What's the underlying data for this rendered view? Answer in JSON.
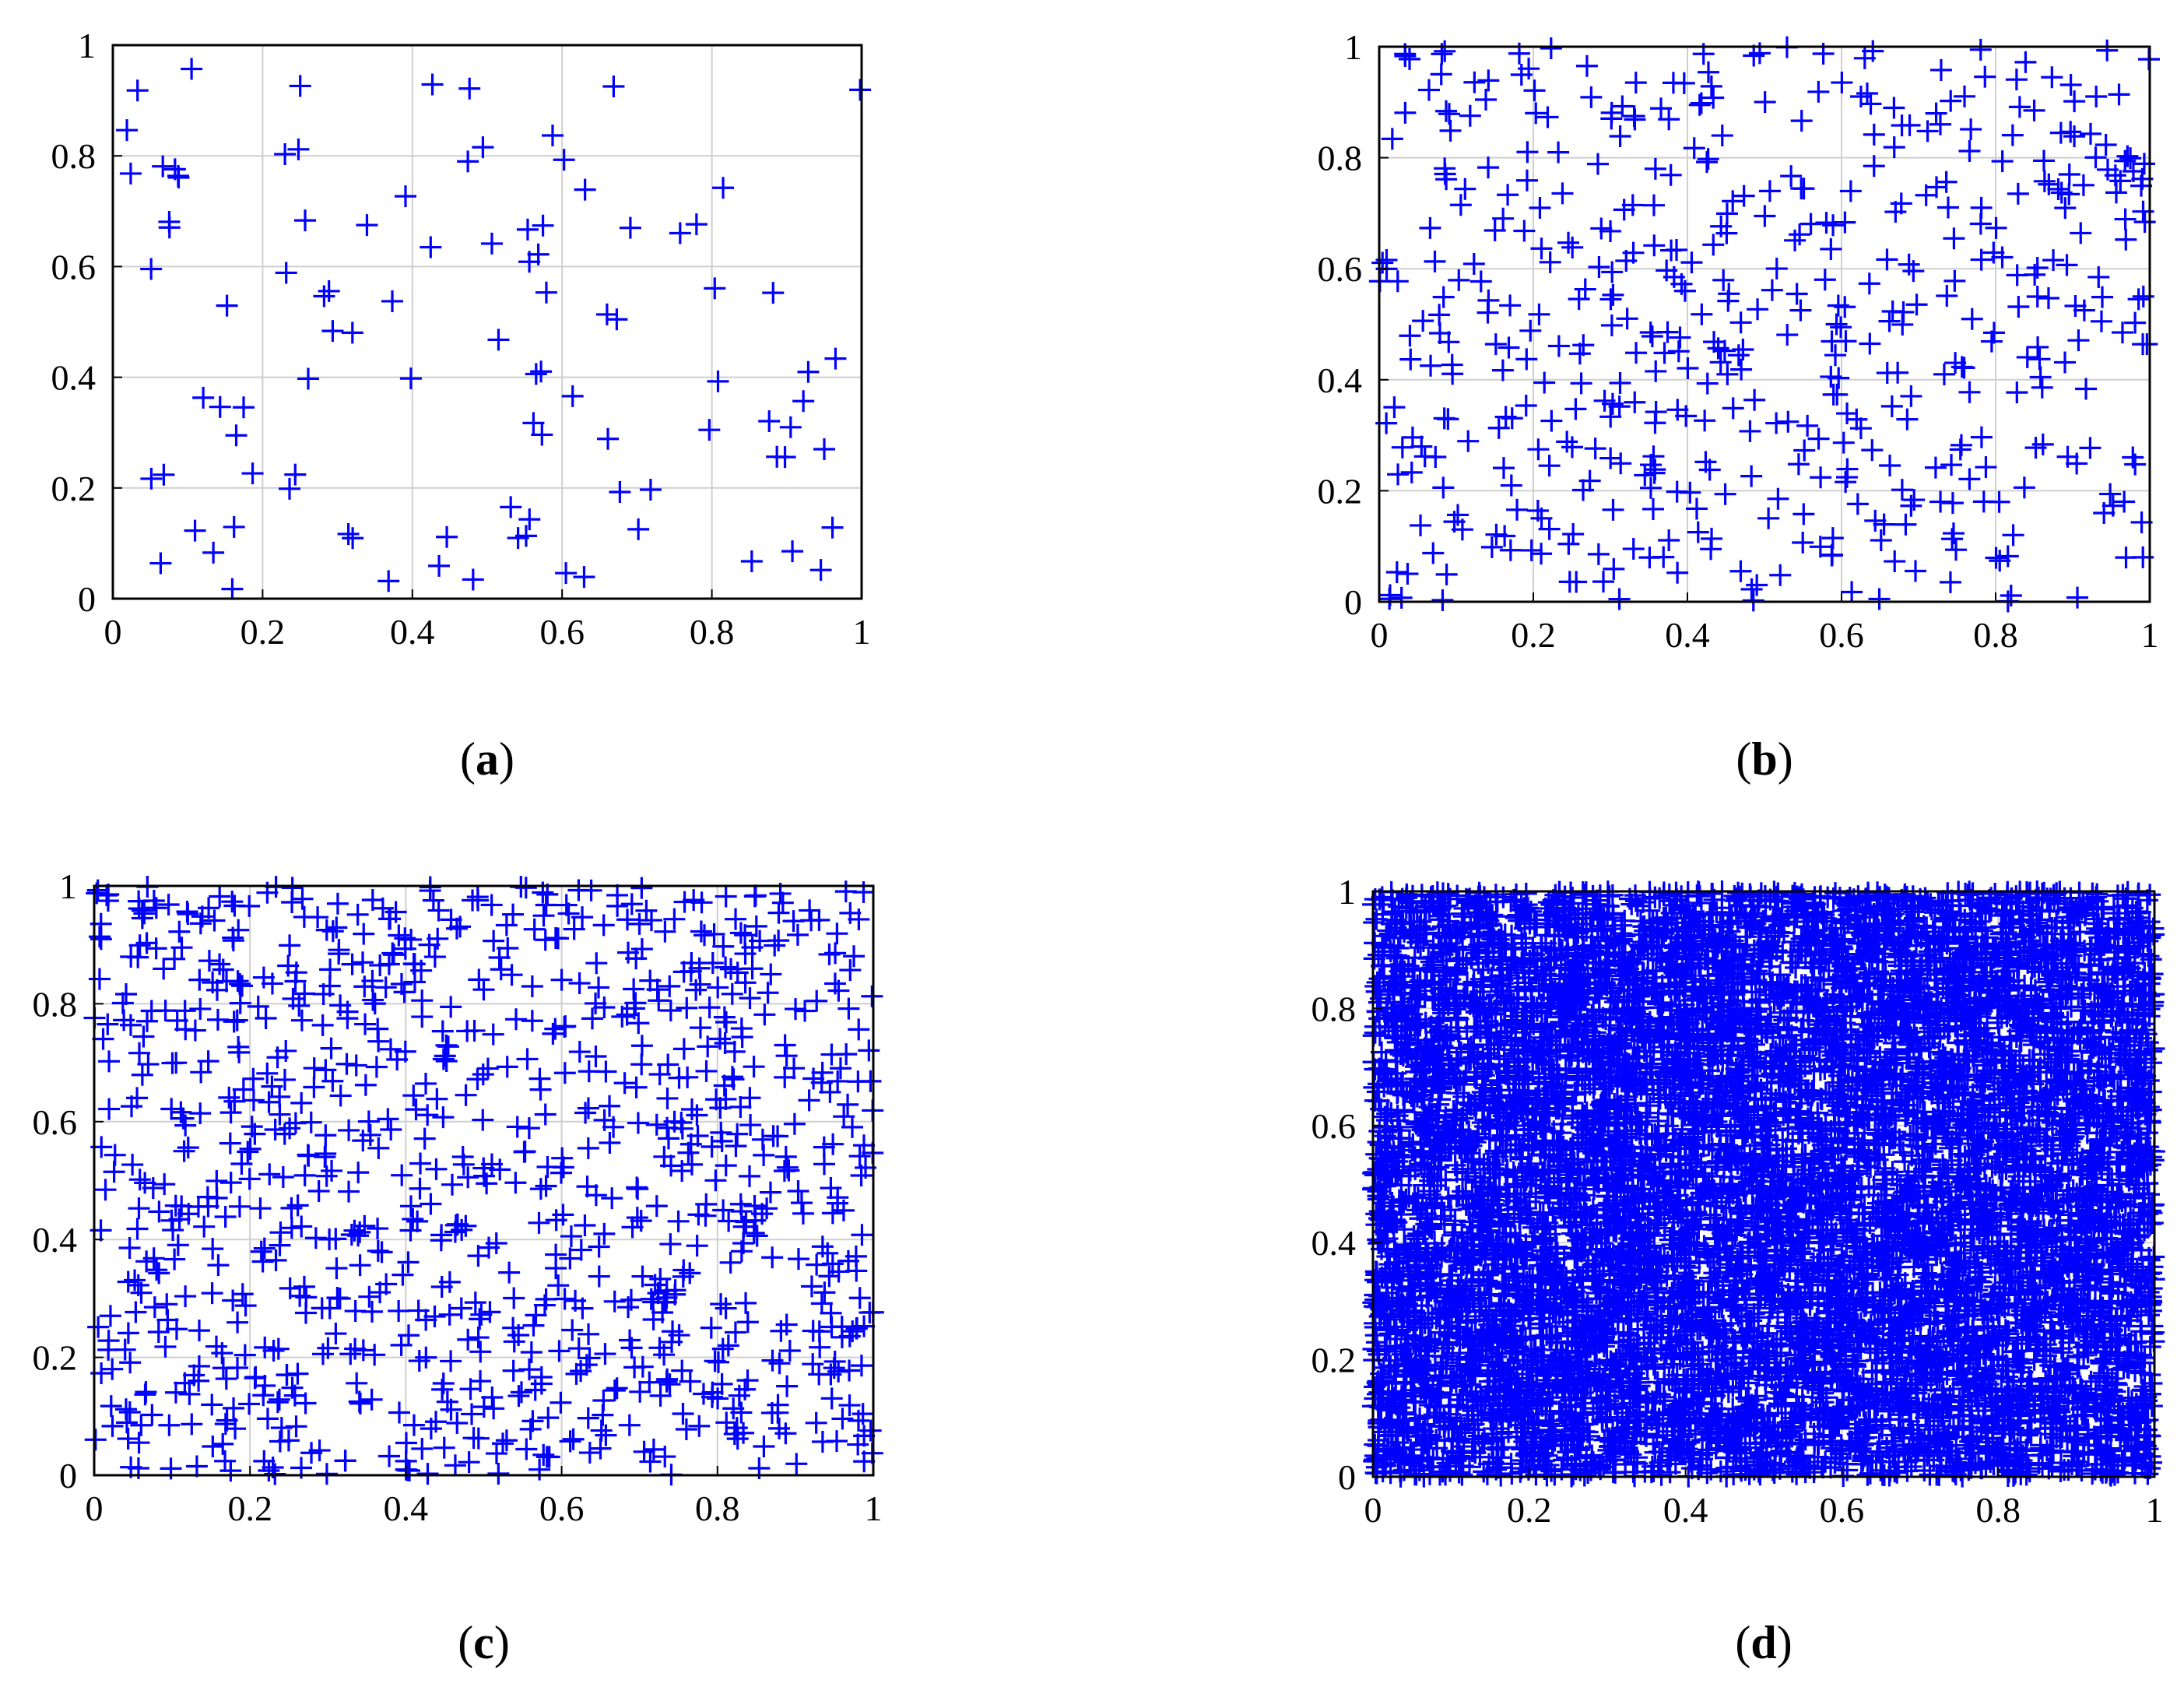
{
  "colors": {
    "marker": "#0000ff",
    "grid": "#cfcfcf",
    "axes": "#000000",
    "background": "#ffffff"
  },
  "chart_data": [
    {
      "panel": "(a)",
      "caption_letter": "a",
      "type": "scatter",
      "marker": "+",
      "xlim": [
        0,
        1
      ],
      "ylim": [
        0,
        1
      ],
      "grid": true,
      "xticks": [
        "0",
        "0.2",
        "0.4",
        "0.6",
        "0.8",
        "1"
      ],
      "yticks": [
        "0",
        "0.2",
        "0.4",
        "0.6",
        "0.8",
        "1"
      ],
      "n_points": 100,
      "seed": 17
    },
    {
      "panel": "(b)",
      "caption_letter": "b",
      "type": "scatter",
      "marker": "+",
      "xlim": [
        0,
        1
      ],
      "ylim": [
        0,
        1
      ],
      "grid": true,
      "xticks": [
        "0",
        "0.2",
        "0.4",
        "0.6",
        "0.8",
        "1"
      ],
      "yticks": [
        "0",
        "0.2",
        "0.4",
        "0.6",
        "0.8",
        "1"
      ],
      "n_points": 500,
      "seed": 29
    },
    {
      "panel": "(c)",
      "caption_letter": "c",
      "type": "scatter",
      "marker": "+",
      "xlim": [
        0,
        1
      ],
      "ylim": [
        0,
        1
      ],
      "grid": true,
      "xticks": [
        "0",
        "0.2",
        "0.4",
        "0.6",
        "0.8",
        "1"
      ],
      "yticks": [
        "0",
        "0.2",
        "0.4",
        "0.6",
        "0.8",
        "1"
      ],
      "n_points": 1000,
      "seed": 43
    },
    {
      "panel": "(d)",
      "caption_letter": "d",
      "type": "scatter",
      "marker": "+",
      "xlim": [
        0,
        1
      ],
      "ylim": [
        0,
        1
      ],
      "grid": true,
      "xticks": [
        "0",
        "0.2",
        "0.4",
        "0.6",
        "0.8",
        "1"
      ],
      "yticks": [
        "0",
        "0.2",
        "0.4",
        "0.6",
        "0.8",
        "1"
      ],
      "n_points": 10000,
      "seed": 61
    }
  ]
}
